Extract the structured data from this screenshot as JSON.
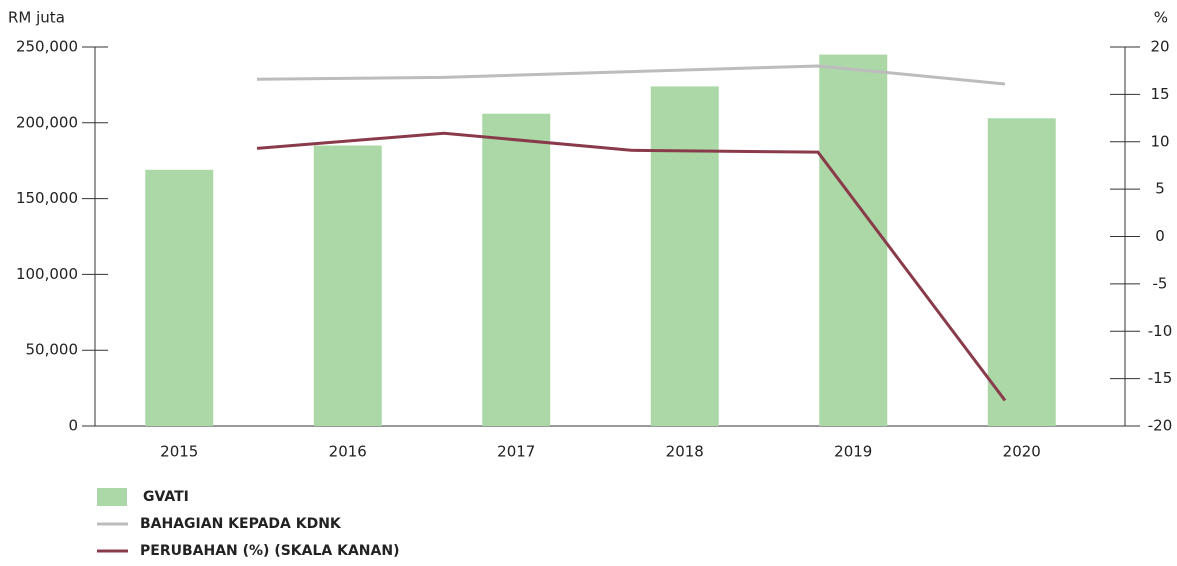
{
  "chart_data": {
    "type": "bar",
    "y_label": "RM juta",
    "y2_label": "%",
    "categories": [
      "2015",
      "2016",
      "2017",
      "2018",
      "2019",
      "2020"
    ],
    "series": [
      {
        "name": "GVATI",
        "color": "#abd8a6",
        "type": "bar",
        "values": [
          169000,
          185000,
          206000,
          224000,
          245000,
          203000
        ]
      },
      {
        "name": "BAHAGIAN KEPADA KDNK",
        "color": "#bcbcbc",
        "type": "line",
        "axis": "y2",
        "values": [
          null,
          16.6,
          16.8,
          17.4,
          18.0,
          16.1
        ]
      },
      {
        "name": "PERUBAHAN (%) (SKALA KANAN)",
        "color": "#8a3b4b",
        "type": "line",
        "axis": "y2",
        "values": [
          null,
          9.3,
          10.9,
          9.1,
          8.9,
          -17.3
        ]
      }
    ],
    "ylim": [
      0,
      250000
    ],
    "yticks": [
      {
        "value": 0,
        "label": "0"
      },
      {
        "value": 50000,
        "label": "50,000"
      },
      {
        "value": 100000,
        "label": "100,000"
      },
      {
        "value": 150000,
        "label": "150,000"
      },
      {
        "value": 200000,
        "label": "200,000"
      },
      {
        "value": 250000,
        "label": "250,000"
      }
    ],
    "y2lim": [
      -20,
      20
    ],
    "y2ticks": [
      -20,
      -15,
      -10,
      -5,
      0,
      5,
      10,
      15,
      20
    ]
  }
}
